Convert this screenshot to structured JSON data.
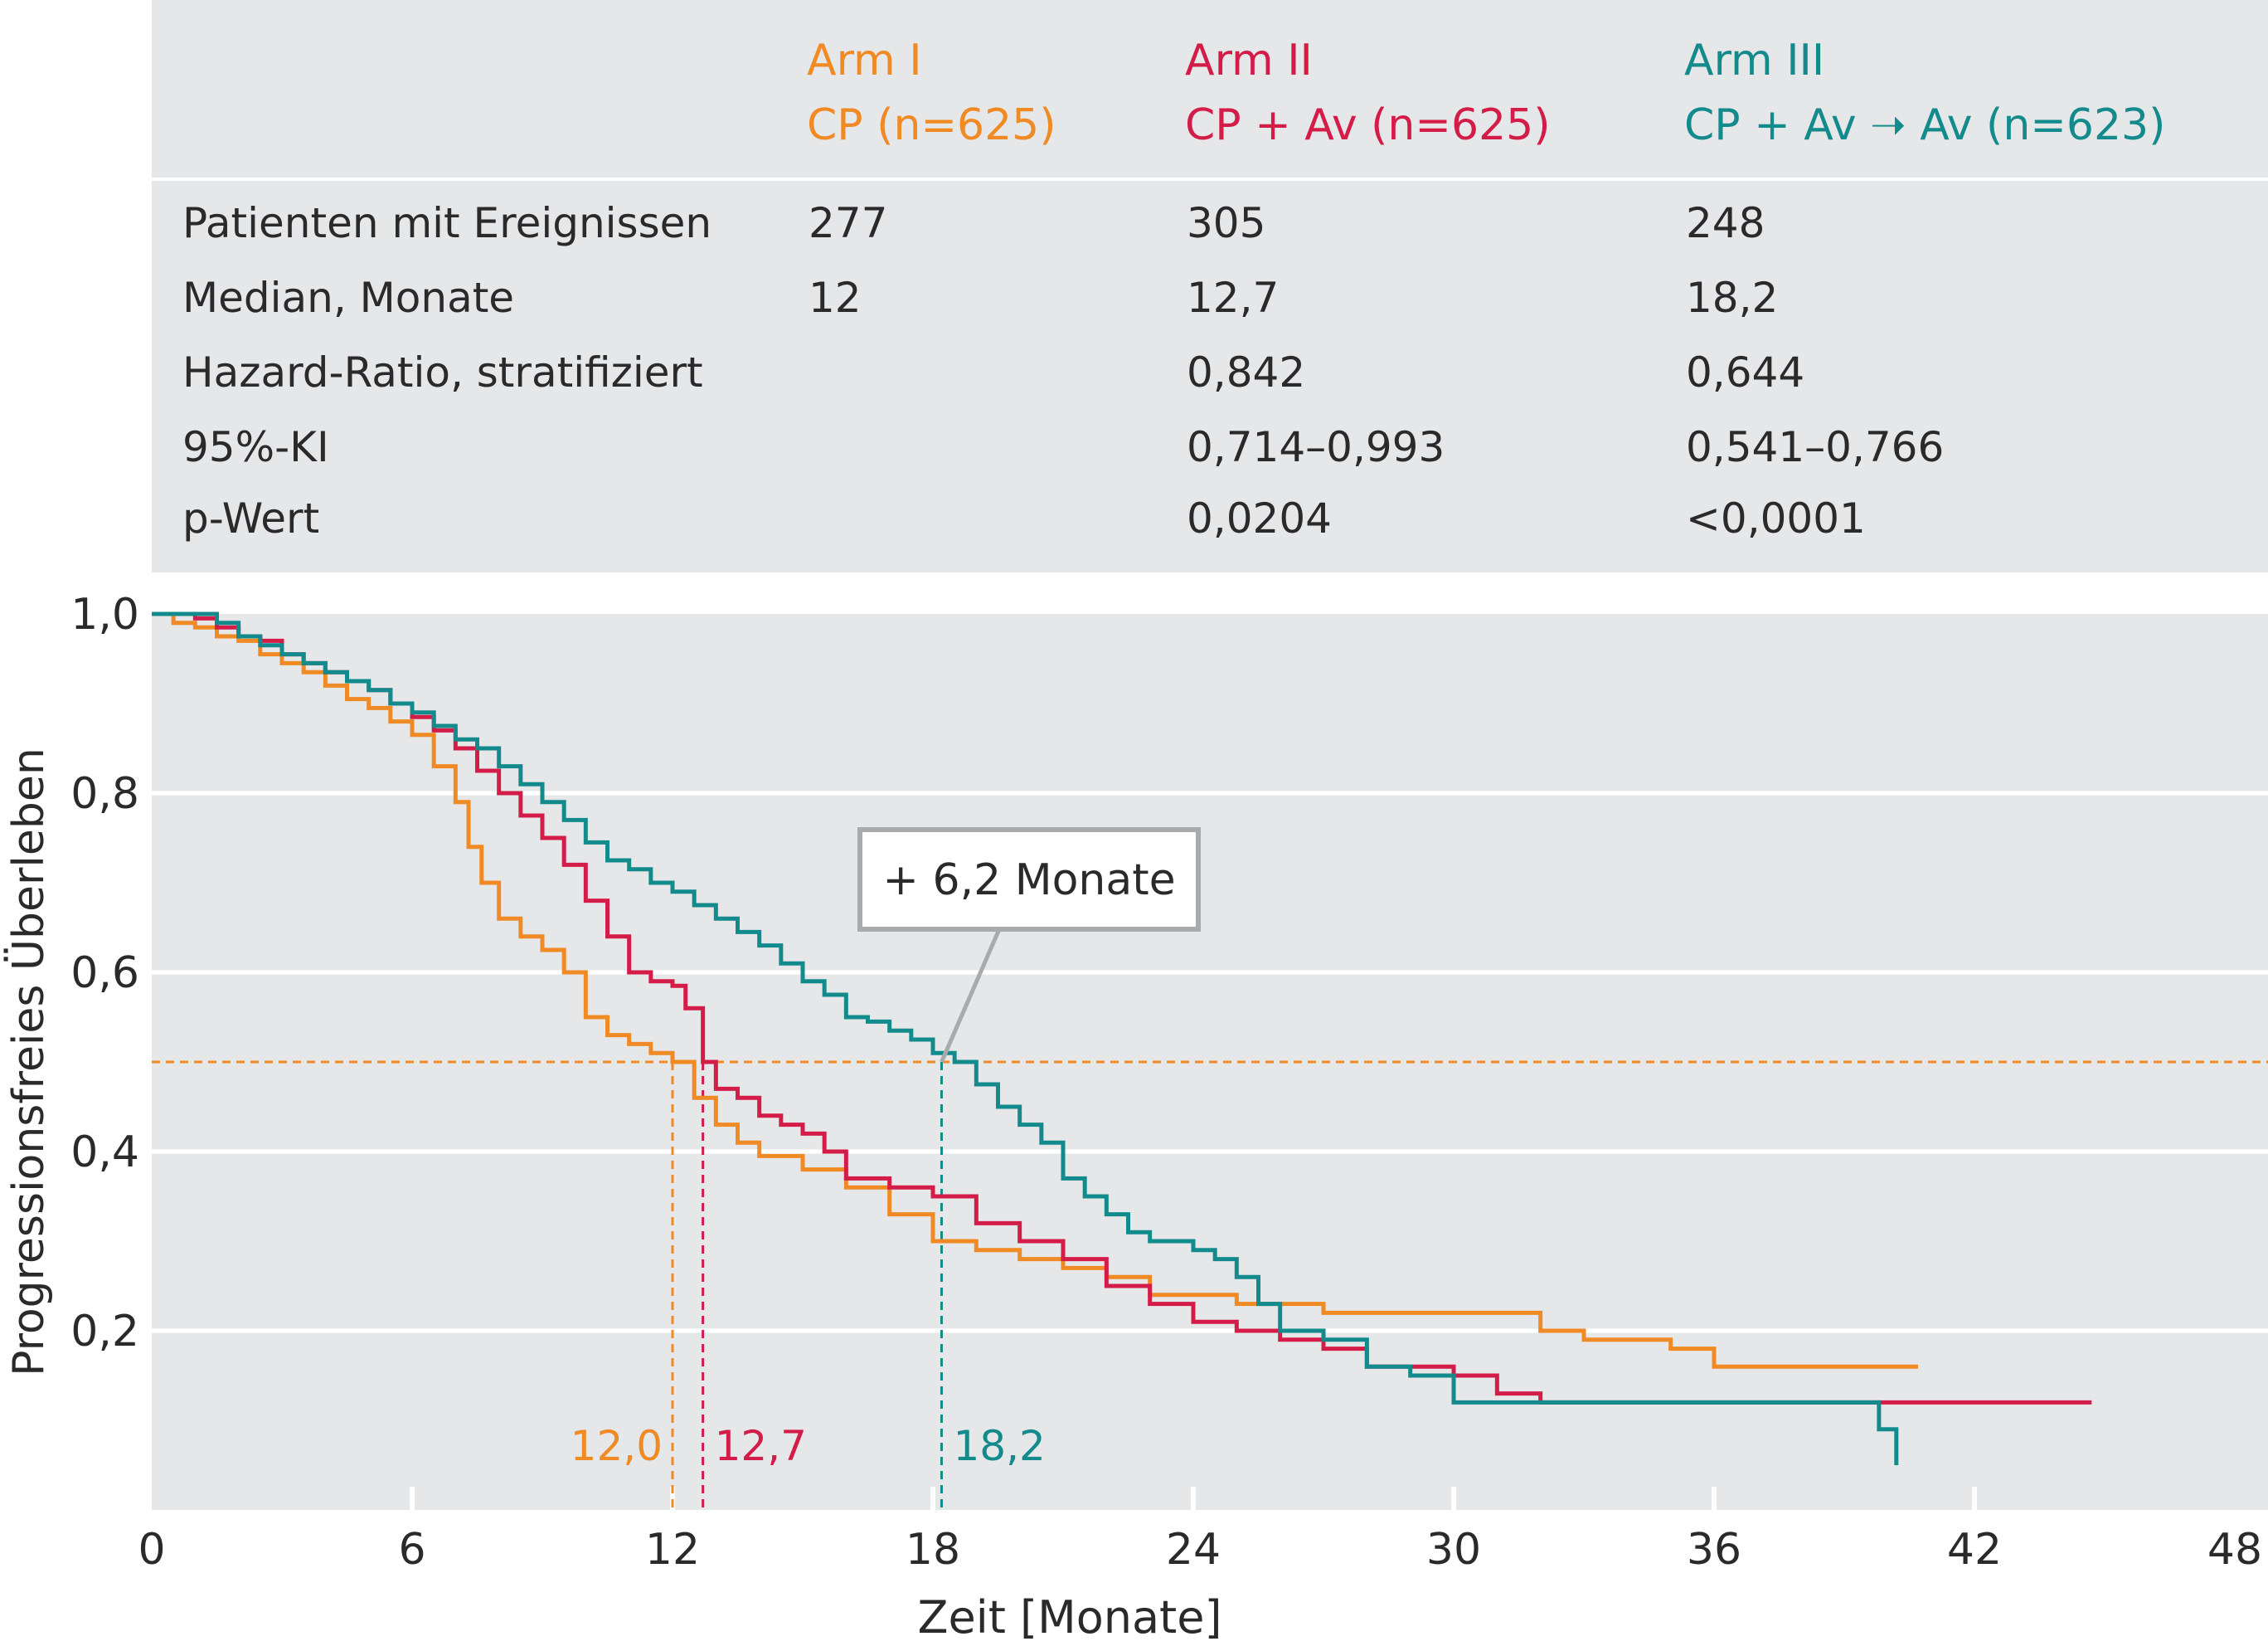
{
  "colors": {
    "arm1": "#f08a24",
    "arm2": "#d41c48",
    "arm3": "#138a8c",
    "panel": "#e6e7e9",
    "grid": "#ffffff",
    "callout_border": "#a9aaac"
  },
  "table": {
    "arms": [
      {
        "name": "Arm I",
        "detail": "CP (n=625)"
      },
      {
        "name": "Arm II",
        "detail": "CP + Av (n=625)"
      },
      {
        "name": "Arm III",
        "detail": "CP + Av ➝ Av (n=623)"
      }
    ],
    "rows": [
      {
        "label": "Patienten mit Ereignissen",
        "values": [
          "277",
          "305",
          "248"
        ]
      },
      {
        "label": "Median, Monate",
        "values": [
          "12",
          "12,7",
          "18,2"
        ]
      },
      {
        "label": "Hazard-Ratio, stratifiziert",
        "values": [
          "",
          "0,842",
          "0,644"
        ]
      },
      {
        "label": "95%-KI",
        "values": [
          "",
          "0,714–0,993",
          "0,541–0,766"
        ]
      },
      {
        "label": "p-Wert",
        "values": [
          "",
          "0,0204",
          "<0,0001"
        ]
      }
    ]
  },
  "chart_data": {
    "type": "line",
    "xlabel": "Zeit [Monate]",
    "ylabel": "Progressionsfreies Überleben",
    "xlim": [
      0,
      48
    ],
    "ylim": [
      0,
      1.0
    ],
    "x_ticks": [
      0,
      6,
      12,
      18,
      24,
      30,
      36,
      42,
      48
    ],
    "x_tick_labels": [
      "0",
      "6",
      "12",
      "18",
      "24",
      "30",
      "36",
      "42",
      "48"
    ],
    "y_ticks": [
      0.2,
      0.4,
      0.6,
      0.8,
      1.0
    ],
    "y_tick_labels": [
      "0,2",
      "0,4",
      "0,6",
      "0,8",
      "1,0"
    ],
    "grid": true,
    "reference_line_y": 0.5,
    "medians": [
      {
        "x": 12.0,
        "label": "12,0",
        "series": 0
      },
      {
        "x": 12.7,
        "label": "12,7",
        "series": 1
      },
      {
        "x": 18.2,
        "label": "18,2",
        "series": 2
      }
    ],
    "callout": {
      "text": "+ 6,2 Monate",
      "x": 18.2,
      "y": 0.5
    },
    "series": [
      {
        "name": "Arm I",
        "x": [
          0,
          0.5,
          1.0,
          1.5,
          2.0,
          2.5,
          3.0,
          3.5,
          4.0,
          4.5,
          5.0,
          5.5,
          6.0,
          6.5,
          7.0,
          7.3,
          7.6,
          8.0,
          8.5,
          9.0,
          9.5,
          10.0,
          10.5,
          11.0,
          11.5,
          12.0,
          12.5,
          13.0,
          13.5,
          14.0,
          15.0,
          16.0,
          17.0,
          18.0,
          19.0,
          20.0,
          21.0,
          22.0,
          23.0,
          24.0,
          25.0,
          26.0,
          27.0,
          28.0,
          29.0,
          30.0,
          31.0,
          32.0,
          33.0,
          34.0,
          35.0,
          36.0,
          40.7
        ],
        "y": [
          1.0,
          0.99,
          0.985,
          0.975,
          0.97,
          0.955,
          0.945,
          0.935,
          0.92,
          0.905,
          0.895,
          0.88,
          0.865,
          0.83,
          0.79,
          0.74,
          0.7,
          0.66,
          0.64,
          0.625,
          0.6,
          0.55,
          0.53,
          0.52,
          0.51,
          0.5,
          0.46,
          0.43,
          0.41,
          0.395,
          0.38,
          0.36,
          0.33,
          0.3,
          0.29,
          0.28,
          0.27,
          0.26,
          0.24,
          0.24,
          0.23,
          0.23,
          0.22,
          0.22,
          0.22,
          0.22,
          0.22,
          0.2,
          0.19,
          0.19,
          0.18,
          0.16,
          0.16
        ]
      },
      {
        "name": "Arm II",
        "x": [
          0,
          0.5,
          1.0,
          1.5,
          2.0,
          2.5,
          3.0,
          3.5,
          4.0,
          4.5,
          5.0,
          5.5,
          6.0,
          6.5,
          7.0,
          7.5,
          8.0,
          8.5,
          9.0,
          9.5,
          10.0,
          10.5,
          11.0,
          11.5,
          12.0,
          12.3,
          12.7,
          13.0,
          13.5,
          14.0,
          14.5,
          15.0,
          15.5,
          16.0,
          17.0,
          18.0,
          19.0,
          20.0,
          21.0,
          22.0,
          23.0,
          24.0,
          25.0,
          26.0,
          27.0,
          28.0,
          29.0,
          30.0,
          31.0,
          32.0,
          34.0,
          36.0,
          38.0,
          40.0,
          42.0,
          44.7
        ],
        "y": [
          1.0,
          1.0,
          0.995,
          0.985,
          0.975,
          0.97,
          0.955,
          0.945,
          0.935,
          0.925,
          0.915,
          0.9,
          0.885,
          0.87,
          0.85,
          0.825,
          0.8,
          0.775,
          0.75,
          0.72,
          0.68,
          0.64,
          0.6,
          0.59,
          0.585,
          0.56,
          0.5,
          0.47,
          0.46,
          0.44,
          0.43,
          0.42,
          0.4,
          0.37,
          0.36,
          0.35,
          0.32,
          0.3,
          0.28,
          0.25,
          0.23,
          0.21,
          0.2,
          0.19,
          0.18,
          0.16,
          0.16,
          0.15,
          0.13,
          0.12,
          0.12,
          0.12,
          0.12,
          0.12,
          0.12,
          0.12
        ]
      },
      {
        "name": "Arm III",
        "x": [
          0,
          0.5,
          1.0,
          1.5,
          2.0,
          2.5,
          3.0,
          3.5,
          4.0,
          4.5,
          5.0,
          5.5,
          6.0,
          6.5,
          7.0,
          7.5,
          8.0,
          8.5,
          9.0,
          9.5,
          10.0,
          10.5,
          11.0,
          11.5,
          12.0,
          12.5,
          13.0,
          13.5,
          14.0,
          14.5,
          15.0,
          15.5,
          16.0,
          16.5,
          17.0,
          17.5,
          18.0,
          18.5,
          19.0,
          19.5,
          20.0,
          20.5,
          21.0,
          21.5,
          22.0,
          22.5,
          23.0,
          23.5,
          24.0,
          24.5,
          25.0,
          25.5,
          26.0,
          27.0,
          28.0,
          29.0,
          30.0,
          31.0,
          32.0,
          34.0,
          36.0,
          38.0,
          39.5,
          39.8,
          40.2
        ],
        "y": [
          1.0,
          1.0,
          1.0,
          0.99,
          0.975,
          0.965,
          0.955,
          0.945,
          0.935,
          0.925,
          0.915,
          0.9,
          0.89,
          0.875,
          0.86,
          0.85,
          0.83,
          0.81,
          0.79,
          0.77,
          0.745,
          0.725,
          0.715,
          0.7,
          0.69,
          0.675,
          0.66,
          0.645,
          0.63,
          0.61,
          0.59,
          0.575,
          0.55,
          0.545,
          0.535,
          0.525,
          0.51,
          0.5,
          0.475,
          0.45,
          0.43,
          0.41,
          0.37,
          0.35,
          0.33,
          0.31,
          0.3,
          0.3,
          0.29,
          0.28,
          0.26,
          0.23,
          0.2,
          0.19,
          0.16,
          0.15,
          0.12,
          0.12,
          0.12,
          0.12,
          0.12,
          0.12,
          0.12,
          0.09,
          0.05
        ]
      }
    ]
  }
}
